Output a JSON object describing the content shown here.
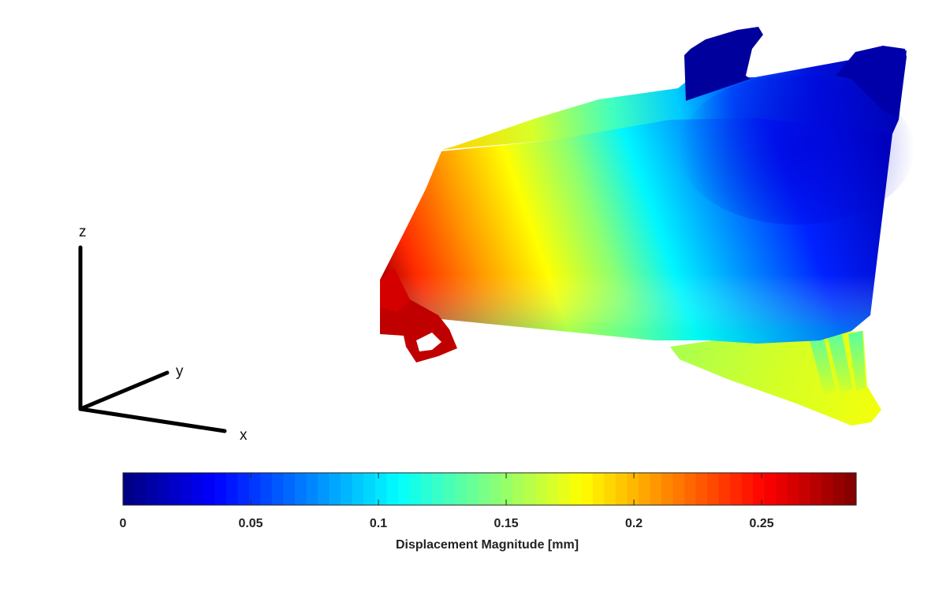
{
  "triad": {
    "x_label": "x",
    "y_label": "y",
    "z_label": "z"
  },
  "chart_data": {
    "type": "heatmap",
    "colormap": "jet",
    "colorbar": {
      "label": "Displacement Magnitude [mm]",
      "limits": [
        0,
        0.287
      ],
      "ticks": [
        0,
        0.05,
        0.1,
        0.15,
        0.2,
        0.25
      ],
      "tick_labels": [
        "0",
        "0.05",
        "0.1",
        "0.15",
        "0.2",
        "0.25"
      ],
      "levels": 64,
      "orientation": "horizontal",
      "placement": "bottom"
    },
    "regions": [
      {
        "region": "left tip and left support",
        "displacement": 0.28
      },
      {
        "region": "left face",
        "displacement": 0.22
      },
      {
        "region": "middle band",
        "displacement": 0.15
      },
      {
        "region": "lower right supports",
        "displacement": 0.16
      },
      {
        "region": "right face",
        "displacement": 0.08
      },
      {
        "region": "top right lugs",
        "displacement": 0.0
      }
    ]
  }
}
